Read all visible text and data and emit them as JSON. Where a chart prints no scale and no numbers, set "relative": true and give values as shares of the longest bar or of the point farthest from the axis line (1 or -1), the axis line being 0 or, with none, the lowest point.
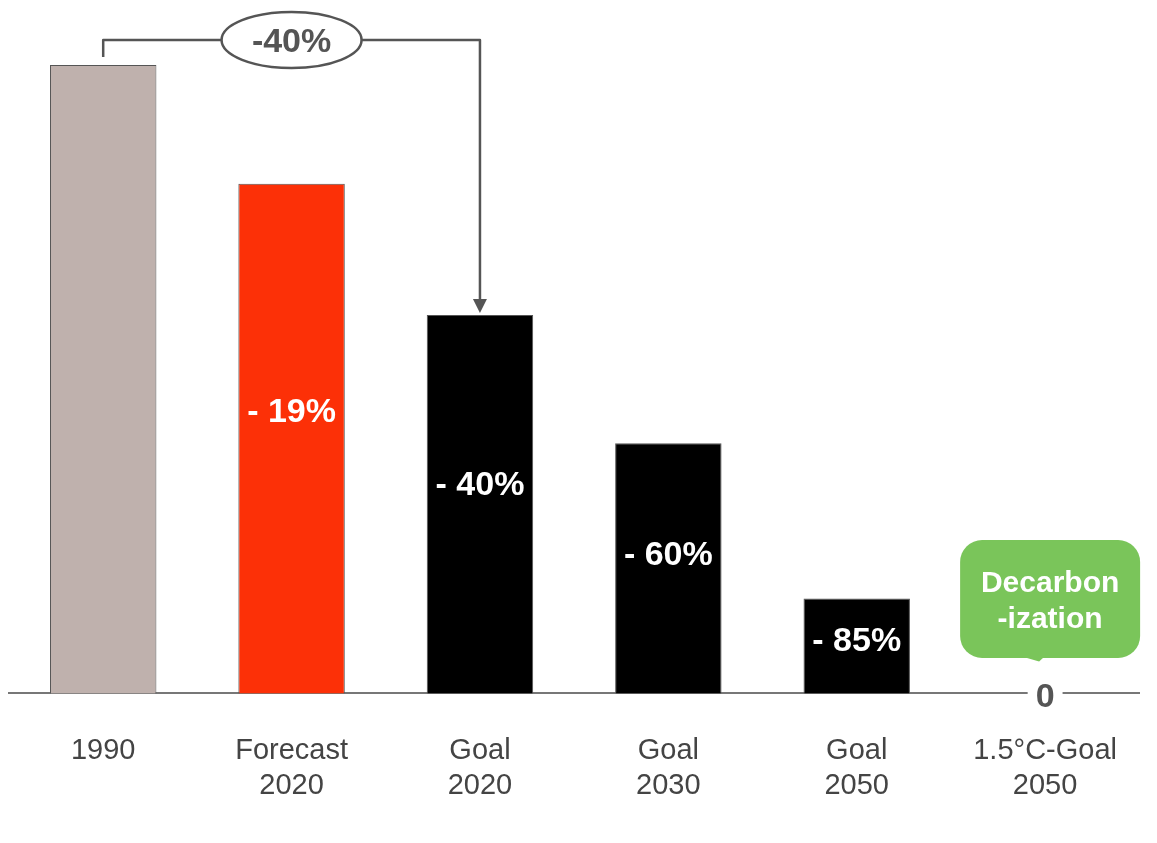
{
  "chart_data": {
    "type": "bar",
    "relative": true,
    "categories": [
      "1990",
      "Forecast\n2020",
      "Goal\n2020",
      "Goal\n2030",
      "Goal\n2050",
      "1.5°C-Goal\n2050"
    ],
    "values": [
      1,
      0.811,
      0.602,
      0.398,
      0.151,
      0
    ],
    "colors": [
      "#bfb1ad",
      "#fc3007",
      "#000000",
      "#000000",
      "#000000",
      "#000000"
    ],
    "annotations": [
      "-40%",
      "Decarbon\n-ization",
      "- 19%",
      "- 40%",
      "- 60%",
      "- 85%",
      "0"
    ],
    "grid": false,
    "legend": false
  }
}
